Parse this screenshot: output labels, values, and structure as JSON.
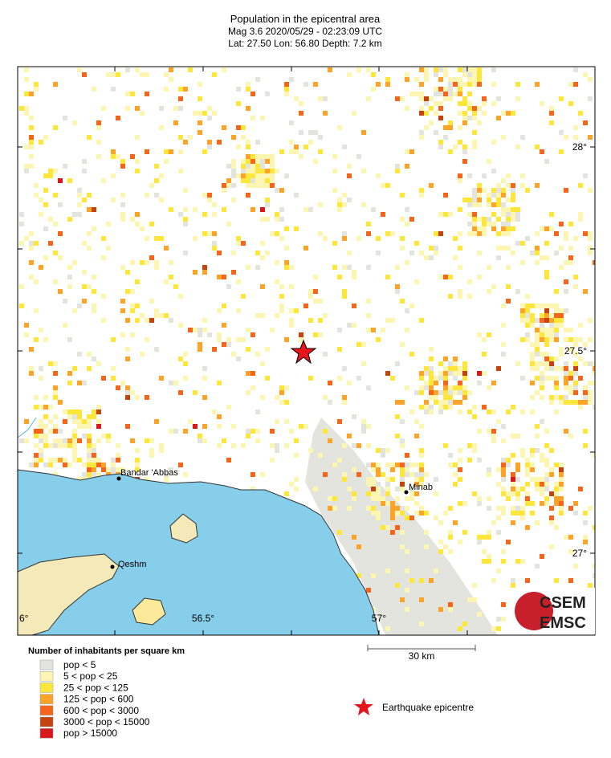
{
  "header": {
    "title": "Population in the epicentral area",
    "line2": "Mag 3.6  2020/05/29 - 02:23:09 UTC",
    "line3": "Lat: 27.50    Lon: 56.80    Depth:  7.2 km"
  },
  "map": {
    "lat_labels": [
      "28°",
      "27.5°",
      "27°"
    ],
    "lon_labels": [
      "6°",
      "56.5°",
      "57°"
    ],
    "places": [
      "Bandar 'Abbas",
      "Minab",
      "Qeshm"
    ],
    "scale": "30 km"
  },
  "logo": {
    "top": "CSEM",
    "bottom": "EMSC"
  },
  "legend": {
    "title": "Number of inhabitants per square km",
    "items": [
      {
        "label": "pop < 5",
        "color": "#e4e4df"
      },
      {
        "label": "5 < pop < 25",
        "color": "#fdf5b2"
      },
      {
        "label": "25 < pop < 125",
        "color": "#fde73c"
      },
      {
        "label": "125 < pop < 600",
        "color": "#fca32a"
      },
      {
        "label": "600 < pop < 3000",
        "color": "#f4661c"
      },
      {
        "label": "3000 < pop < 15000",
        "color": "#c44410"
      },
      {
        "label": "pop > 15000",
        "color": "#d7191c"
      }
    ],
    "epicentre": "Earthquake epicentre"
  }
}
